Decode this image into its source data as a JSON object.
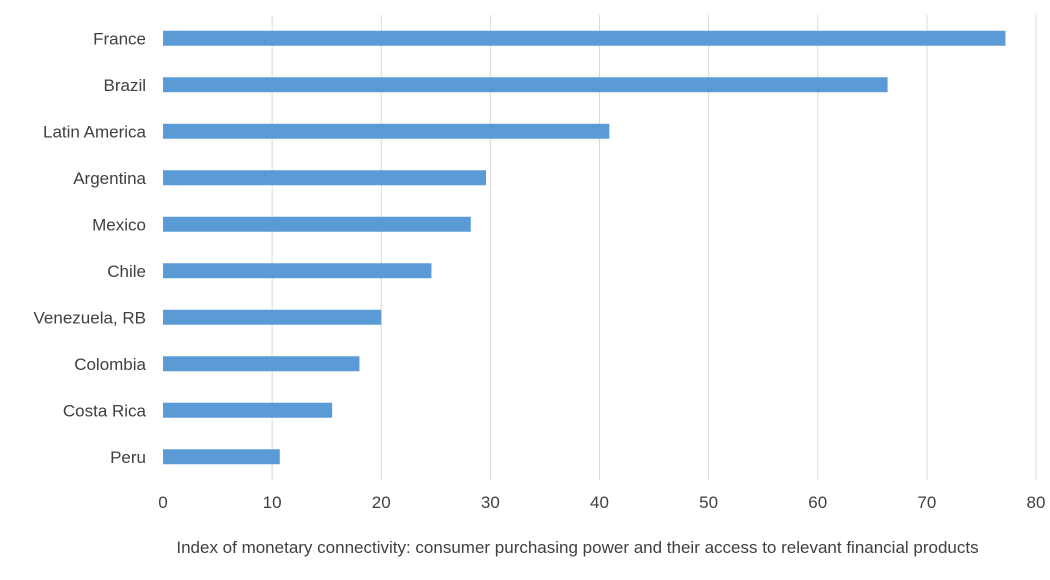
{
  "chart_data": {
    "type": "bar",
    "orientation": "horizontal",
    "title": "",
    "xlabel": "Index of monetary connectivity:  consumer purchasing power and their access to relevant financial products",
    "ylabel": "",
    "categories": [
      "France",
      "Brazil",
      "Latin America",
      "Argentina",
      "Mexico",
      "Chile",
      "Venezuela, RB",
      "Colombia",
      "Costa Rica",
      "Peru"
    ],
    "values": [
      77.2,
      66.4,
      40.9,
      29.6,
      28.2,
      24.6,
      20.0,
      18.0,
      15.5,
      10.7
    ],
    "xlim": [
      0,
      80
    ],
    "xticks": [
      0,
      10,
      20,
      30,
      40,
      50,
      60,
      70,
      80
    ],
    "grid": true,
    "bar_color": "#5b9bd5"
  }
}
